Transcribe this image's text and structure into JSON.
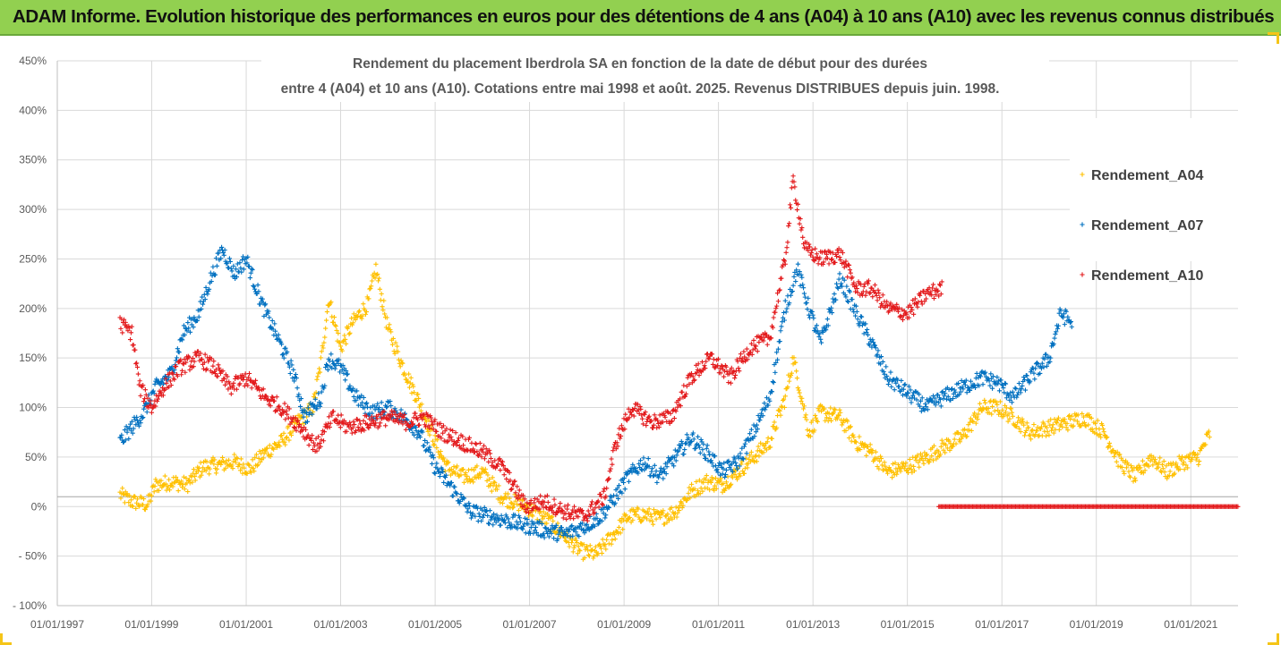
{
  "banner": {
    "text": "ADAM Informe. Evolution historique des performances en euros pour des détentions de 4 ans (A04) à 10 ans (A10) avec les revenus connus distribués",
    "background": "#92d050"
  },
  "chart_data": {
    "type": "scatter",
    "title_line1": "Rendement du placement Iberdrola SA en fonction de la date de début pour des durées",
    "title_line2": "entre 4 (A04) et 10 ans (A10). Cotations entre mai 1998 et août. 2025. Revenus DISTRIBUES depuis juin. 1998.",
    "xlabel": "",
    "ylabel": "",
    "xlim": [
      "1997-01-01",
      "2022-01-01"
    ],
    "ylim": [
      -100,
      450
    ],
    "y_tick_labels": [
      "- 100%",
      "- 50%",
      "0%",
      "50%",
      "100%",
      "150%",
      "200%",
      "250%",
      "300%",
      "350%",
      "400%",
      "450%"
    ],
    "x_tick_labels": [
      "01/01/1997",
      "01/01/1999",
      "01/01/2001",
      "01/01/2003",
      "01/01/2005",
      "01/01/2007",
      "01/01/2009",
      "01/01/2011",
      "01/01/2013",
      "01/01/2015",
      "01/01/2017",
      "01/01/2019",
      "01/01/2021"
    ],
    "grid": true,
    "legend_position": "right",
    "marker": "+",
    "series": [
      {
        "name": "Rendement_A04",
        "color": "#ffc000",
        "points": [
          [
            "1998-05-01",
            12
          ],
          [
            "1998-08-01",
            5
          ],
          [
            "1998-12-01",
            2
          ],
          [
            "1999-02-01",
            22
          ],
          [
            "1999-06-01",
            25
          ],
          [
            "1999-10-01",
            22
          ],
          [
            "2000-02-01",
            40
          ],
          [
            "2000-06-01",
            42
          ],
          [
            "2000-10-01",
            45
          ],
          [
            "2001-02-01",
            38
          ],
          [
            "2001-06-01",
            55
          ],
          [
            "2001-10-01",
            65
          ],
          [
            "2002-02-01",
            85
          ],
          [
            "2002-06-01",
            100
          ],
          [
            "2002-08-01",
            145
          ],
          [
            "2002-10-01",
            210
          ],
          [
            "2003-01-01",
            160
          ],
          [
            "2003-04-01",
            185
          ],
          [
            "2003-08-01",
            205
          ],
          [
            "2003-10-01",
            240
          ],
          [
            "2004-01-01",
            180
          ],
          [
            "2004-05-01",
            140
          ],
          [
            "2004-09-01",
            105
          ],
          [
            "2005-01-01",
            65
          ],
          [
            "2005-04-01",
            40
          ],
          [
            "2005-08-01",
            30
          ],
          [
            "2006-01-01",
            35
          ],
          [
            "2006-06-01",
            10
          ],
          [
            "2006-12-01",
            0
          ],
          [
            "2007-06-01",
            -15
          ],
          [
            "2007-10-01",
            -30
          ],
          [
            "2008-02-01",
            -45
          ],
          [
            "2008-06-01",
            -48
          ],
          [
            "2008-10-01",
            -30
          ],
          [
            "2009-02-01",
            -10
          ],
          [
            "2009-06-01",
            -8
          ],
          [
            "2009-10-01",
            -12
          ],
          [
            "2010-02-01",
            -5
          ],
          [
            "2010-06-01",
            15
          ],
          [
            "2010-10-01",
            25
          ],
          [
            "2011-02-01",
            22
          ],
          [
            "2011-06-01",
            35
          ],
          [
            "2011-10-01",
            50
          ],
          [
            "2012-02-01",
            65
          ],
          [
            "2012-06-01",
            110
          ],
          [
            "2012-08-01",
            150
          ],
          [
            "2012-12-01",
            75
          ],
          [
            "2013-03-01",
            95
          ],
          [
            "2013-08-01",
            90
          ],
          [
            "2013-12-01",
            65
          ],
          [
            "2014-04-01",
            55
          ],
          [
            "2014-08-01",
            35
          ],
          [
            "2015-01-01",
            40
          ],
          [
            "2015-06-01",
            50
          ],
          [
            "2015-10-01",
            60
          ],
          [
            "2016-03-01",
            70
          ],
          [
            "2016-08-01",
            100
          ],
          [
            "2016-12-01",
            100
          ],
          [
            "2017-04-01",
            90
          ],
          [
            "2017-08-01",
            75
          ],
          [
            "2018-01-01",
            80
          ],
          [
            "2018-06-01",
            85
          ],
          [
            "2018-10-01",
            90
          ],
          [
            "2019-03-01",
            75
          ],
          [
            "2019-07-01",
            45
          ],
          [
            "2019-11-01",
            30
          ],
          [
            "2020-03-01",
            50
          ],
          [
            "2020-07-01",
            35
          ],
          [
            "2020-11-01",
            45
          ],
          [
            "2021-03-01",
            50
          ],
          [
            "2021-06-01",
            75
          ]
        ]
      },
      {
        "name": "Rendement_A07",
        "color": "#0070c0",
        "points": [
          [
            "1998-05-01",
            65
          ],
          [
            "1998-08-01",
            80
          ],
          [
            "1998-11-01",
            95
          ],
          [
            "1999-02-01",
            120
          ],
          [
            "1999-06-01",
            135
          ],
          [
            "1999-09-01",
            175
          ],
          [
            "2000-01-01",
            195
          ],
          [
            "2000-04-01",
            230
          ],
          [
            "2000-07-01",
            260
          ],
          [
            "2000-10-01",
            235
          ],
          [
            "2001-01-01",
            250
          ],
          [
            "2001-05-01",
            205
          ],
          [
            "2001-09-01",
            170
          ],
          [
            "2002-01-01",
            135
          ],
          [
            "2002-04-01",
            90
          ],
          [
            "2002-08-01",
            110
          ],
          [
            "2002-10-01",
            150
          ],
          [
            "2003-01-01",
            140
          ],
          [
            "2003-05-01",
            110
          ],
          [
            "2003-09-01",
            95
          ],
          [
            "2004-01-01",
            100
          ],
          [
            "2004-05-01",
            90
          ],
          [
            "2004-09-01",
            75
          ],
          [
            "2005-01-01",
            40
          ],
          [
            "2005-06-01",
            15
          ],
          [
            "2005-10-01",
            -5
          ],
          [
            "2006-03-01",
            -10
          ],
          [
            "2006-08-01",
            -15
          ],
          [
            "2007-01-01",
            -20
          ],
          [
            "2007-06-01",
            -25
          ],
          [
            "2007-10-01",
            -28
          ],
          [
            "2008-03-01",
            -20
          ],
          [
            "2008-07-01",
            -10
          ],
          [
            "2008-10-01",
            5
          ],
          [
            "2009-02-01",
            30
          ],
          [
            "2009-06-01",
            45
          ],
          [
            "2009-10-01",
            30
          ],
          [
            "2010-02-01",
            50
          ],
          [
            "2010-06-01",
            70
          ],
          [
            "2010-10-01",
            55
          ],
          [
            "2011-02-01",
            35
          ],
          [
            "2011-06-01",
            45
          ],
          [
            "2011-10-01",
            75
          ],
          [
            "2012-02-01",
            110
          ],
          [
            "2012-06-01",
            200
          ],
          [
            "2012-09-01",
            240
          ],
          [
            "2012-12-01",
            200
          ],
          [
            "2013-03-01",
            165
          ],
          [
            "2013-08-01",
            230
          ],
          [
            "2013-12-01",
            195
          ],
          [
            "2014-04-01",
            165
          ],
          [
            "2014-08-01",
            130
          ],
          [
            "2015-01-01",
            115
          ],
          [
            "2015-06-01",
            100
          ],
          [
            "2015-10-01",
            110
          ],
          [
            "2016-03-01",
            120
          ],
          [
            "2016-08-01",
            130
          ],
          [
            "2016-12-01",
            125
          ],
          [
            "2017-04-01",
            110
          ],
          [
            "2017-08-01",
            130
          ],
          [
            "2018-01-01",
            150
          ],
          [
            "2018-04-01",
            195
          ],
          [
            "2018-07-01",
            185
          ]
        ]
      },
      {
        "name": "Rendement_A10",
        "color": "#e31a1c",
        "points": [
          [
            "1998-05-01",
            185
          ],
          [
            "1998-08-01",
            175
          ],
          [
            "1998-10-01",
            120
          ],
          [
            "1999-01-01",
            100
          ],
          [
            "1999-04-01",
            120
          ],
          [
            "1999-08-01",
            140
          ],
          [
            "2000-01-01",
            150
          ],
          [
            "2000-05-01",
            140
          ],
          [
            "2000-09-01",
            120
          ],
          [
            "2001-01-01",
            130
          ],
          [
            "2001-06-01",
            110
          ],
          [
            "2001-10-01",
            100
          ],
          [
            "2002-03-01",
            80
          ],
          [
            "2002-07-01",
            60
          ],
          [
            "2002-11-01",
            90
          ],
          [
            "2003-03-01",
            80
          ],
          [
            "2003-08-01",
            85
          ],
          [
            "2004-01-01",
            90
          ],
          [
            "2004-06-01",
            85
          ],
          [
            "2004-10-01",
            90
          ],
          [
            "2005-03-01",
            75
          ],
          [
            "2005-08-01",
            65
          ],
          [
            "2006-01-01",
            55
          ],
          [
            "2006-06-01",
            40
          ],
          [
            "2006-12-01",
            0
          ],
          [
            "2007-05-01",
            5
          ],
          [
            "2007-10-01",
            -5
          ],
          [
            "2008-03-01",
            -10
          ],
          [
            "2008-08-01",
            10
          ],
          [
            "2008-11-01",
            65
          ],
          [
            "2009-03-01",
            100
          ],
          [
            "2009-08-01",
            85
          ],
          [
            "2010-01-01",
            90
          ],
          [
            "2010-06-01",
            130
          ],
          [
            "2010-11-01",
            150
          ],
          [
            "2011-04-01",
            130
          ],
          [
            "2011-09-01",
            160
          ],
          [
            "2012-02-01",
            170
          ],
          [
            "2012-06-01",
            250
          ],
          [
            "2012-08-01",
            330
          ],
          [
            "2012-11-01",
            260
          ],
          [
            "2013-03-01",
            250
          ],
          [
            "2013-08-01",
            255
          ],
          [
            "2013-12-01",
            220
          ],
          [
            "2014-04-01",
            220
          ],
          [
            "2014-08-01",
            200
          ],
          [
            "2015-01-01",
            195
          ],
          [
            "2015-06-01",
            215
          ],
          [
            "2015-10-01",
            220
          ]
        ],
        "zero_segment": [
          "2015-09-01",
          "2022-01-01"
        ]
      }
    ]
  }
}
